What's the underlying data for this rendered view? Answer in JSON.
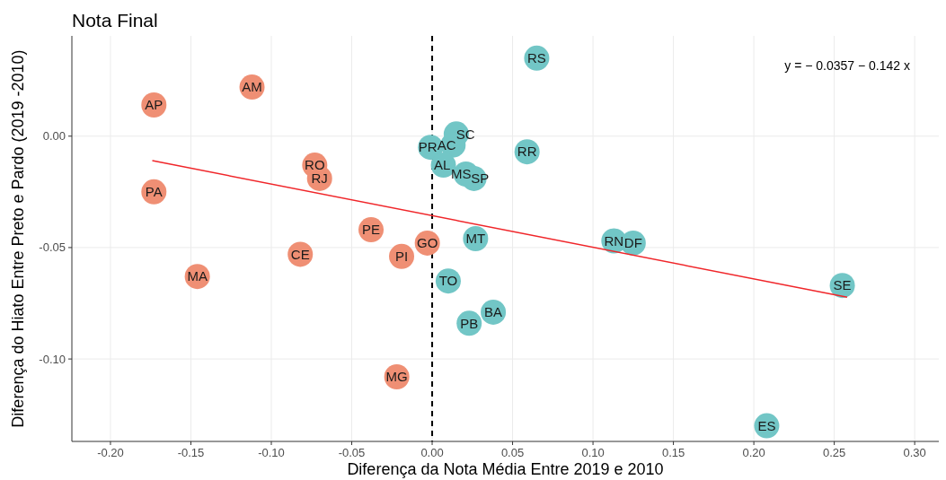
{
  "chart_data": {
    "type": "scatter",
    "title": "Nota Final",
    "xlabel": "Diferença da Nota Média Entre 2019 e 2010",
    "ylabel": "Diferença do Hiato Entre Preto e Pardo (2019 -2010)",
    "xlim": [
      -0.224,
      0.315
    ],
    "ylim": [
      -0.137,
      0.045
    ],
    "xticks": [
      {
        "value": -0.2,
        "label": "-0.20"
      },
      {
        "value": -0.15,
        "label": "-0.15"
      },
      {
        "value": -0.1,
        "label": "-0.10"
      },
      {
        "value": -0.05,
        "label": "-0.05"
      },
      {
        "value": 0,
        "label": "0.00"
      },
      {
        "value": 0.05,
        "label": "0.05"
      },
      {
        "value": 0.1,
        "label": "0.10"
      },
      {
        "value": 0.15,
        "label": "0.15"
      },
      {
        "value": 0.2,
        "label": "0.20"
      },
      {
        "value": 0.25,
        "label": "0.25"
      },
      {
        "value": 0.3,
        "label": "0.30"
      }
    ],
    "yticks": [
      {
        "value": -0.1,
        "label": "-0.10"
      },
      {
        "value": -0.05,
        "label": "-0.05"
      },
      {
        "value": 0,
        "label": "0.00"
      }
    ],
    "grid": true,
    "series": [
      {
        "marker": "circle",
        "color": "#ef8f74",
        "x": [
          -0.112,
          -0.173,
          -0.073,
          -0.07,
          -0.173,
          -0.038,
          -0.003,
          -0.082,
          -0.019,
          -0.146,
          -0.022
        ],
        "values": [
          0.022,
          0.014,
          -0.013,
          -0.019,
          -0.025,
          -0.042,
          -0.048,
          -0.053,
          -0.054,
          -0.063,
          -0.108
        ],
        "value_labels": [
          "AM",
          "AP",
          "RO",
          "RJ",
          "PA",
          "PE",
          "GO",
          "CE",
          "PI",
          "MA",
          "MG"
        ]
      },
      {
        "marker": "circle",
        "color": "#72c6c6",
        "x": [
          0.065,
          0.015,
          -0.001,
          0.013,
          0.059,
          0.007,
          0.021,
          0.026,
          0.027,
          0.113,
          0.125,
          0.01,
          0.255,
          0.038,
          0.023,
          0.208
        ],
        "values": [
          0.035,
          0.001,
          -0.005,
          -0.004,
          -0.007,
          -0.013,
          -0.017,
          -0.019,
          -0.046,
          -0.047,
          -0.048,
          -0.065,
          -0.067,
          -0.079,
          -0.084,
          -0.13
        ],
        "value_labels": [
          "RS",
          "SC",
          "PR",
          "AC",
          "RR",
          "AL",
          "MS",
          "SP",
          "MT",
          "RN",
          "DF",
          "TO",
          "SE",
          "BA",
          "PB",
          "ES"
        ]
      },
      {
        "type": "line",
        "marker": "none",
        "color": "#f0262a",
        "x": [
          -0.174,
          0.258
        ],
        "values": [
          -0.011,
          -0.0723
        ]
      }
    ],
    "ref_lines": [
      {
        "axis": "x",
        "value": 0,
        "color": "#000000",
        "line_style": "dashed"
      }
    ],
    "annotations": [
      "y = − 0.0357 − 0.142 x"
    ]
  }
}
